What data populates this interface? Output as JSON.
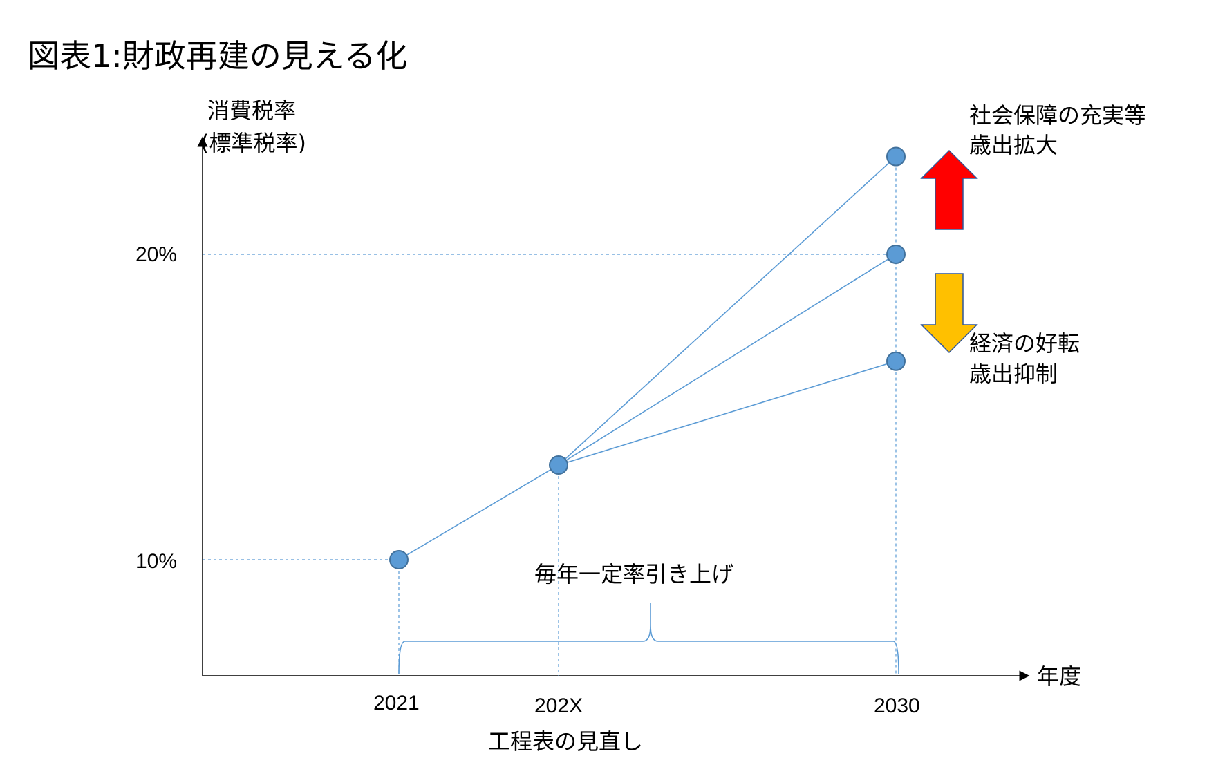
{
  "title": "図表1:財政再建の見える化",
  "y_axis_label_line1": "消費税率",
  "y_axis_label_line2": "(標準税率)",
  "x_axis_label": "年度",
  "bottom_label": "工程表の見直し",
  "brace_label": "毎年一定率引き上げ",
  "annotation_up": [
    "社会保障の充実等",
    "歳出拡大"
  ],
  "annotation_down": [
    "経済の好転",
    "歳出抑制"
  ],
  "colors": {
    "line": "#5b9bd5",
    "point_fill": "#5b9bd5",
    "point_stroke": "#41719c",
    "arrow_up": "#ff0000",
    "arrow_down": "#ffc000",
    "arrow_stroke": "#2f5597"
  },
  "chart_data": {
    "type": "line",
    "x_categories": [
      "2021",
      "202X",
      "2030"
    ],
    "y_ticks": [
      "10%",
      "20%"
    ],
    "y_tick_values": [
      10,
      20
    ],
    "points": [
      {
        "x": "2021",
        "y": 10
      },
      {
        "x": "202X",
        "y": 13.1
      },
      {
        "x": "2030",
        "y": 23.2
      },
      {
        "x": "2030",
        "y": 20
      },
      {
        "x": "2030",
        "y": 16.5
      }
    ],
    "segments": [
      {
        "from": [
          "2021",
          10
        ],
        "to": [
          "202X",
          13.1
        ]
      },
      {
        "from": [
          "202X",
          13.1
        ],
        "to": [
          "2030",
          23.2
        ]
      },
      {
        "from": [
          "202X",
          13.1
        ],
        "to": [
          "2030",
          20
        ]
      },
      {
        "from": [
          "202X",
          13.1
        ],
        "to": [
          "2030",
          16.5
        ]
      }
    ]
  }
}
